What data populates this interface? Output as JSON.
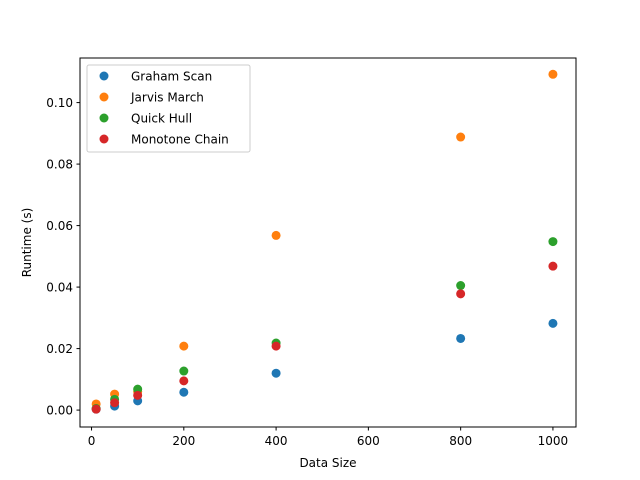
{
  "chart_data": {
    "type": "scatter",
    "title": "",
    "xlabel": "Data Size",
    "ylabel": "Runtime (s)",
    "xlim": [
      -25,
      1050
    ],
    "ylim": [
      -0.0055,
      0.1145
    ],
    "xticks": [
      0,
      200,
      400,
      600,
      800,
      1000
    ],
    "yticks": [
      0.0,
      0.02,
      0.04,
      0.06,
      0.08,
      0.1
    ],
    "ytick_labels": [
      "0.00",
      "0.02",
      "0.04",
      "0.06",
      "0.08",
      "0.10"
    ],
    "xtick_labels": [
      "0",
      "200",
      "400",
      "600",
      "800",
      "1000"
    ],
    "grid": false,
    "legend_position": "top-left",
    "x": [
      10,
      50,
      100,
      200,
      400,
      800,
      1000
    ],
    "series": [
      {
        "name": "Graham Scan",
        "color": "#1f77b4",
        "values": [
          0.0003,
          0.0013,
          0.003,
          0.0058,
          0.012,
          0.0233,
          0.0282
        ]
      },
      {
        "name": "Jarvis March",
        "color": "#ff7f0e",
        "values": [
          0.002,
          0.0052,
          0.006,
          0.0208,
          0.0568,
          0.0888,
          0.1092
        ]
      },
      {
        "name": "Quick Hull",
        "color": "#2ca02c",
        "values": [
          0.0005,
          0.0035,
          0.0068,
          0.0127,
          0.0218,
          0.0405,
          0.0548
        ]
      },
      {
        "name": "Monotone Chain",
        "color": "#d62728",
        "values": [
          0.0003,
          0.0024,
          0.0048,
          0.0095,
          0.0208,
          0.0378,
          0.0468
        ]
      }
    ]
  }
}
